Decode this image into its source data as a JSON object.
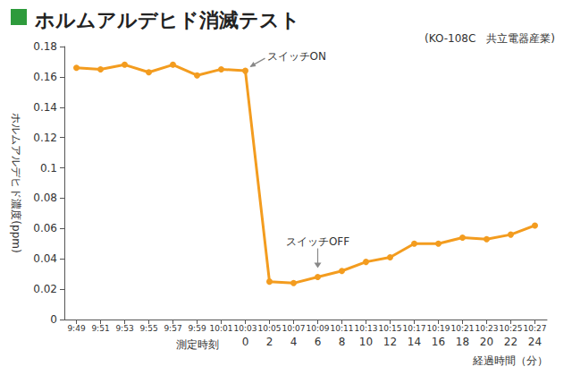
{
  "chart_data": {
    "type": "line",
    "title": "ホルムアルデヒド消滅テスト",
    "subtitle": "(KO-108C　共立電器産業)",
    "x_label": "測定時刻",
    "x2_label": "経過時間（分）",
    "y_label": "ホルムアルデヒド濃度(ppm)",
    "categories": [
      "9:49",
      "9:51",
      "9:53",
      "9:55",
      "9:57",
      "9:59",
      "10:01",
      "10:03",
      "10:05",
      "10:07",
      "10:09",
      "10:11",
      "10:13",
      "10:15",
      "10:17",
      "10:19",
      "10:21",
      "10:23",
      "10:25",
      "10:27"
    ],
    "elapsed_minutes": [
      null,
      null,
      null,
      null,
      null,
      null,
      null,
      0,
      2,
      4,
      6,
      8,
      10,
      12,
      14,
      16,
      18,
      20,
      22,
      24
    ],
    "values": [
      0.166,
      0.165,
      0.168,
      0.163,
      0.168,
      0.161,
      0.165,
      0.164,
      0.025,
      0.024,
      0.028,
      0.032,
      0.038,
      0.041,
      0.05,
      0.05,
      0.054,
      0.053,
      0.056,
      0.062
    ],
    "color": "#f39c1f",
    "marker": "circle",
    "ylim": [
      0,
      0.18
    ],
    "yticks": [
      0,
      0.02,
      0.04,
      0.06,
      0.08,
      0.1,
      0.12,
      0.14,
      0.16,
      0.18
    ],
    "grid": false,
    "annotations": [
      {
        "text": "スイッチON",
        "category": "10:03"
      },
      {
        "text": "スイッチOFF",
        "category": "10:09"
      }
    ]
  }
}
